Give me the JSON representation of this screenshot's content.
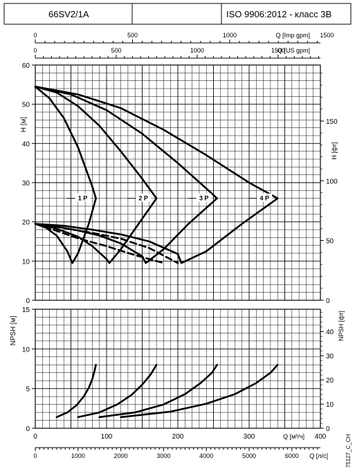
{
  "header": {
    "model": "66SV2/1A",
    "standard": "ISO 9906:2012 - класс 3B"
  },
  "doc_code": "75127_C_CH",
  "chart_data": [
    {
      "type": "line",
      "panel": "head",
      "ylabel_left": "H [м]",
      "ylabel_right": "H [фт]",
      "ylim": [
        0,
        60
      ],
      "yticks": [
        "0",
        "10",
        "20",
        "30",
        "40",
        "50",
        "60"
      ],
      "ylim_right": [
        0,
        196.85
      ],
      "yticks_right": [
        "0",
        "50",
        "100",
        "150"
      ],
      "top_axes": [
        {
          "label": "Q [Imp gpm]",
          "ticks": [
            "0",
            "500",
            "1000",
            "1500"
          ],
          "values": [
            0,
            500,
            1000,
            1500
          ],
          "per_m3h": 3.6661
        },
        {
          "label": "Q [US gpm]",
          "ticks": [
            "0",
            "500",
            "1000",
            "1500"
          ],
          "values": [
            0,
            500,
            1000,
            1500
          ],
          "per_m3h": 4.4029
        }
      ],
      "xlim": [
        0,
        400
      ],
      "grid": true,
      "series": [
        {
          "name": "1 P",
          "style": "solid",
          "x": [
            0,
            20,
            40,
            60,
            80,
            85
          ],
          "y": [
            54.5,
            51.5,
            46.5,
            39,
            29,
            26
          ]
        },
        {
          "name": "2 P",
          "style": "solid",
          "x": [
            0,
            30,
            60,
            90,
            120,
            150,
            170
          ],
          "y": [
            54.5,
            53,
            49.5,
            44.5,
            38,
            31,
            26
          ]
        },
        {
          "name": "3 P",
          "style": "solid",
          "x": [
            0,
            50,
            100,
            150,
            200,
            240,
            255
          ],
          "y": [
            54.5,
            52.5,
            48.5,
            42.5,
            35,
            28.5,
            26
          ]
        },
        {
          "name": "4 P",
          "style": "solid",
          "x": [
            0,
            60,
            120,
            180,
            240,
            300,
            340
          ],
          "y": [
            54.5,
            52.5,
            49,
            43.5,
            37,
            30,
            26
          ]
        },
        {
          "name": "",
          "style": "solid",
          "x": [
            0,
            15,
            30,
            45,
            52,
            60,
            75,
            85
          ],
          "y": [
            19.5,
            18.5,
            16.5,
            12.5,
            9.5,
            12,
            19.5,
            26
          ]
        },
        {
          "name": "",
          "style": "solid",
          "x": [
            0,
            20,
            40,
            60,
            80,
            100,
            104,
            120,
            145,
            170
          ],
          "y": [
            19.5,
            18.8,
            17.6,
            16.2,
            13.8,
            10.5,
            9.5,
            13,
            19.5,
            26
          ]
        },
        {
          "name": "",
          "style": "solid",
          "x": [
            0,
            30,
            60,
            90,
            120,
            150,
            155,
            180,
            215,
            255
          ],
          "y": [
            19.5,
            18.8,
            17.8,
            16.5,
            14.5,
            11.2,
            9.5,
            13,
            19.5,
            26
          ]
        },
        {
          "name": "",
          "style": "solid",
          "x": [
            0,
            40,
            80,
            120,
            160,
            200,
            205,
            240,
            290,
            340
          ],
          "y": [
            19.5,
            19,
            18,
            16.8,
            15,
            11.8,
            9.5,
            12.5,
            19.5,
            26
          ]
        },
        {
          "name": "",
          "style": "dashed",
          "x": [
            0,
            30,
            60,
            100,
            140,
            180
          ],
          "y": [
            19.5,
            17.7,
            15.8,
            13.8,
            11.5,
            9.5
          ]
        },
        {
          "name": "",
          "style": "dashed",
          "x": [
            0,
            40,
            80,
            120,
            160,
            200
          ],
          "y": [
            19.5,
            18.4,
            17.2,
            15.7,
            13.3,
            9.5
          ]
        }
      ],
      "annotations": [
        "1 P",
        "2 P",
        "3 P",
        "4 P"
      ]
    },
    {
      "type": "line",
      "panel": "npsh",
      "ylabel_left": "NPSH [м]",
      "ylabel_right": "NPSH [фт]",
      "ylim": [
        0,
        15
      ],
      "yticks": [
        "0",
        "5",
        "10",
        "15"
      ],
      "ylim_right": [
        0,
        49.21
      ],
      "yticks_right": [
        "0",
        "10",
        "20",
        "30",
        "40"
      ],
      "xlim": [
        0,
        400
      ],
      "xlabel": "Q [м³/ч]",
      "xticks": [
        "0",
        "100",
        "200",
        "300",
        "400"
      ],
      "bottom_axis": {
        "label": "Q [л/с]",
        "ticks": [
          "0",
          "1000",
          "2000",
          "3000",
          "4000",
          "5000",
          "6000"
        ],
        "values": [
          0,
          1000,
          2000,
          3000,
          4000,
          5000,
          6000
        ],
        "per_m3h": 16.6667
      },
      "grid": true,
      "series": [
        {
          "name": "",
          "style": "solid",
          "x": [
            30,
            45,
            58,
            68,
            75,
            80,
            83,
            85
          ],
          "y": [
            1.4,
            2.0,
            2.9,
            4.0,
            5.1,
            6.2,
            7.2,
            8
          ]
        },
        {
          "name": "",
          "style": "solid",
          "x": [
            60,
            90,
            115,
            135,
            150,
            162,
            170
          ],
          "y": [
            1.4,
            2.0,
            3.0,
            4.2,
            5.5,
            6.8,
            8
          ]
        },
        {
          "name": "",
          "style": "solid",
          "x": [
            90,
            140,
            180,
            210,
            232,
            248,
            255
          ],
          "y": [
            1.4,
            2.0,
            3.0,
            4.3,
            5.7,
            7.0,
            8
          ]
        },
        {
          "name": "",
          "style": "solid",
          "x": [
            120,
            190,
            240,
            280,
            310,
            330,
            340
          ],
          "y": [
            1.4,
            2.1,
            3.1,
            4.3,
            5.7,
            7.0,
            8
          ]
        }
      ]
    }
  ]
}
